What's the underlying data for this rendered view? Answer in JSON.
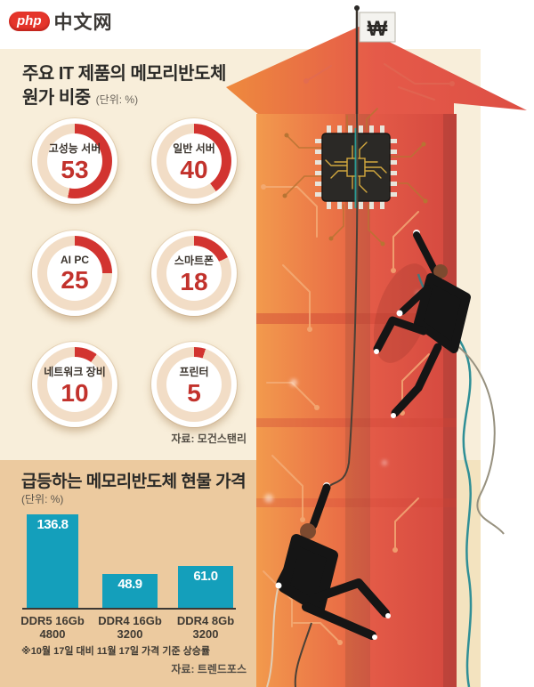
{
  "watermark": {
    "badge": "php",
    "site": "中文网"
  },
  "colors": {
    "gauge_red": "#d23430",
    "gauge_track": "#f2ddc6",
    "gauge_value_red": "#c2322c",
    "bar_teal": "#149fbb",
    "panel_cream": "#f8eeda",
    "panel_tan": "#ecca9f",
    "arrow_orange": "#f1964a",
    "arrow_red": "#d94a41",
    "rope_teal": "#2f8f96"
  },
  "top_chart": {
    "title_line1": "주요 IT 제품의 메모리반도체",
    "title_line2": "원가 비중",
    "unit": "(단위: %)",
    "source": "자료: 모건스탠리",
    "gauges": [
      {
        "label": "고성능 서버",
        "value": 53
      },
      {
        "label": "일반 서버",
        "value": 40
      },
      {
        "label": "AI PC",
        "value": 25
      },
      {
        "label": "스마트폰",
        "value": 18
      },
      {
        "label": "네트워크 장비",
        "value": 10
      },
      {
        "label": "프린터",
        "value": 5
      }
    ]
  },
  "bottom_chart": {
    "title": "급등하는 메모리반도체 현물 가격",
    "unit": "(단위: %)",
    "note": "※10월 17일 대비 11월 17일 가격 기준 상승률",
    "source": "자료: 트렌드포스",
    "bars": [
      {
        "label_line1": "DDR5 16Gb",
        "label_line2": "4800",
        "value": 136.8,
        "display": "136.8"
      },
      {
        "label_line1": "DDR4 16Gb",
        "label_line2": "3200",
        "value": 48.9,
        "display": "48.9"
      },
      {
        "label_line1": "DDR4 8Gb",
        "label_line2": "3200",
        "value": 61.0,
        "display": "61.0"
      }
    ]
  },
  "illustration": {
    "flag_symbol": "₩"
  },
  "chart_data": [
    {
      "type": "pie",
      "title": "주요 IT 제품의 메모리반도체 원가 비중",
      "unit": "(단위: %)",
      "categories": [
        "고성능 서버",
        "일반 서버",
        "AI PC",
        "스마트폰",
        "네트워크 장비",
        "프린터"
      ],
      "values": [
        53,
        40,
        25,
        18,
        10,
        5
      ],
      "source": "자료: 모건스탠리",
      "layout": "six individual donut gauges, red arc starting at 12 o'clock clockwise, value vs 100%"
    },
    {
      "type": "bar",
      "title": "급등하는 메모리반도체 현물 가격",
      "unit": "(단위: %)",
      "categories": [
        "DDR5 16Gb 4800",
        "DDR4 16Gb 3200",
        "DDR4 8Gb 3200"
      ],
      "values": [
        136.8,
        48.9,
        61.0
      ],
      "ylim": [
        0,
        140
      ],
      "grid": false,
      "legend": "none",
      "value_labels": "inside top of bars, white bold",
      "note": "※10월 17일 대비 11월 17일 가격 기준 상승률",
      "source": "자료: 트렌드포스"
    }
  ]
}
